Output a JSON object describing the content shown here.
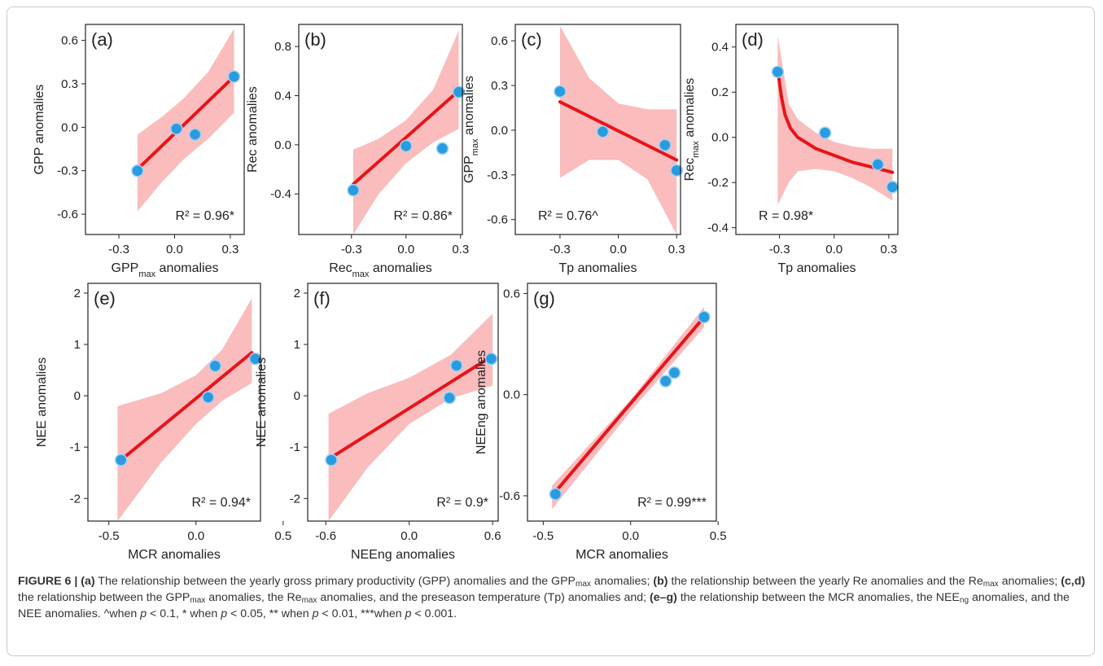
{
  "chart_data": [
    {
      "type": "scatter",
      "panel_label": "(a)",
      "xlabel": [
        "GPP",
        "max",
        " anomalies"
      ],
      "ylabel": [
        "GPP anomalies"
      ],
      "annotation": "R² = 0.96*",
      "annotation_position": "lower right",
      "x": [
        -0.2,
        0.01,
        0.11,
        0.32
      ],
      "values": [
        -0.3,
        -0.01,
        -0.05,
        0.35
      ],
      "color": "#2b9be0",
      "fit": {
        "x": [
          -0.2,
          0.32
        ],
        "values": [
          -0.29,
          0.35
        ],
        "color": "#e8141b"
      },
      "band": {
        "x": [
          -0.2,
          -0.07,
          0.05,
          0.18,
          0.32
        ],
        "lower": [
          -0.58,
          -0.38,
          -0.22,
          -0.08,
          0.1
        ],
        "upper": [
          -0.05,
          0.07,
          0.2,
          0.38,
          0.68
        ],
        "color": "#f9b0b0"
      },
      "xlim": [
        -0.48,
        0.375
      ],
      "ylim": [
        -0.74,
        0.71
      ],
      "xticks": [
        -0.3,
        {
          "value": 0,
          "label": "0.0"
        },
        0.3
      ],
      "yticks": [
        -0.6,
        -0.3,
        {
          "value": 0,
          "label": "0.0"
        },
        0.3,
        0.6
      ]
    },
    {
      "type": "scatter",
      "panel_label": "(b)",
      "xlabel": [
        "Rec",
        "max",
        " anomalies"
      ],
      "ylabel": [
        "Rec anomalies"
      ],
      "annotation": "R² = 0.86*",
      "annotation_position": "lower right",
      "x": [
        -0.29,
        0.0,
        0.2,
        0.29
      ],
      "values": [
        -0.37,
        -0.01,
        -0.03,
        0.43
      ],
      "color": "#2b9be0",
      "fit": {
        "x": [
          -0.29,
          0.29
        ],
        "values": [
          -0.32,
          0.44
        ],
        "color": "#e8141b"
      },
      "band": {
        "x": [
          -0.29,
          -0.15,
          0,
          0.15,
          0.29
        ],
        "lower": [
          -0.73,
          -0.4,
          -0.15,
          0.02,
          0.13
        ],
        "upper": [
          -0.04,
          0.05,
          0.2,
          0.45,
          0.93
        ],
        "color": "#f9b0b0"
      },
      "xlim": [
        -0.59,
        0.31
      ],
      "ylim": [
        -0.73,
        0.98
      ],
      "xticks": [
        -0.3,
        {
          "value": 0,
          "label": "0.0"
        },
        0.3
      ],
      "yticks": [
        -0.4,
        {
          "value": 0,
          "label": "0.0"
        },
        0.4,
        0.8
      ]
    },
    {
      "type": "scatter",
      "panel_label": "(c)",
      "xlabel": [
        "Tp anomalies"
      ],
      "ylabel": [
        "GPP",
        "max",
        " anomalies"
      ],
      "annotation": "R² = 0.76^",
      "annotation_position": "lower left",
      "x": [
        -0.3,
        -0.08,
        0.24,
        0.3
      ],
      "values": [
        0.26,
        -0.01,
        -0.1,
        -0.27
      ],
      "color": "#2b9be0",
      "fit": {
        "x": [
          -0.3,
          0.3
        ],
        "values": [
          0.19,
          -0.2
        ],
        "color": "#e8141b"
      },
      "band": {
        "x": [
          -0.3,
          -0.15,
          0,
          0.15,
          0.3
        ],
        "lower": [
          -0.32,
          -0.2,
          -0.2,
          -0.33,
          -0.7
        ],
        "upper": [
          0.7,
          0.35,
          0.18,
          0.14,
          0.14
        ],
        "color": "#f9b0b0"
      },
      "xlim": [
        -0.53,
        0.32
      ],
      "ylim": [
        -0.7,
        0.71
      ],
      "xticks": [
        -0.3,
        {
          "value": 0,
          "label": "0.0"
        },
        0.3
      ],
      "yticks": [
        -0.6,
        -0.3,
        {
          "value": 0,
          "label": "0.0"
        },
        0.3,
        0.6
      ]
    },
    {
      "type": "scatter",
      "panel_label": "(d)",
      "xlabel": [
        "Tp anomalies"
      ],
      "ylabel": [
        "Rec",
        "max",
        " anomalies"
      ],
      "annotation": "R = 0.98*",
      "annotation_position": "lower left",
      "x": [
        -0.31,
        -0.05,
        0.24,
        0.32
      ],
      "values": [
        0.29,
        0.02,
        -0.12,
        -0.22
      ],
      "color": "#2b9be0",
      "fit": {
        "x": [
          -0.31,
          -0.29,
          -0.27,
          -0.24,
          -0.2,
          -0.1,
          0,
          0.1,
          0.2,
          0.32
        ],
        "values": [
          0.3,
          0.18,
          0.1,
          0.04,
          0.0,
          -0.05,
          -0.08,
          -0.11,
          -0.13,
          -0.155
        ],
        "color": "#e8141b"
      },
      "band": {
        "x": [
          -0.31,
          -0.25,
          -0.2,
          -0.1,
          0,
          0.1,
          0.2,
          0.32
        ],
        "lower": [
          -0.3,
          -0.2,
          -0.15,
          -0.14,
          -0.15,
          -0.18,
          -0.22,
          -0.28
        ],
        "upper": [
          0.45,
          0.15,
          0.08,
          0.02,
          -0.02,
          -0.04,
          -0.05,
          -0.05
        ],
        "color": "#f9b0b0"
      },
      "xlim": [
        -0.54,
        0.35
      ],
      "ylim": [
        -0.43,
        0.5
      ],
      "xticks": [
        -0.3,
        {
          "value": 0,
          "label": "0.0"
        },
        0.3
      ],
      "yticks": [
        -0.4,
        -0.2,
        {
          "value": 0,
          "label": "0.0"
        },
        0.2,
        0.4
      ]
    },
    {
      "type": "scatter",
      "panel_label": "(e)",
      "xlabel": [
        "MCR anomalies"
      ],
      "ylabel": [
        "NEE anomalies"
      ],
      "annotation": "R² = 0.94*",
      "annotation_position": "lower right",
      "x": [
        -0.43,
        0.07,
        0.11,
        0.34
      ],
      "values": [
        -1.25,
        -0.03,
        0.58,
        0.72
      ],
      "color": "#2b9be0",
      "fit": {
        "x": [
          -0.43,
          0.32
        ],
        "values": [
          -1.25,
          0.84
        ],
        "color": "#e8141b"
      },
      "band": {
        "x": [
          -0.45,
          -0.2,
          0,
          0.15,
          0.32
        ],
        "lower": [
          -2.44,
          -1.3,
          -0.55,
          -0.1,
          0.25
        ],
        "upper": [
          -0.2,
          0.05,
          0.4,
          0.9,
          1.9
        ],
        "color": "#f9b0b0"
      },
      "xlim": [
        -0.62,
        0.37
      ],
      "ylim": [
        -2.44,
        2.19
      ],
      "xticks": [
        -0.5,
        {
          "value": 0,
          "label": "0.0"
        },
        0.5
      ],
      "yticks": [
        -2,
        -1,
        0,
        1,
        2
      ]
    },
    {
      "type": "scatter",
      "panel_label": "(f)",
      "xlabel": [
        "NEEng anomalies"
      ],
      "ylabel": [
        "NEE anomalies"
      ],
      "annotation": "R² = 0.9*",
      "annotation_position": "lower right",
      "x": [
        -0.56,
        0.29,
        0.34,
        0.59
      ],
      "values": [
        -1.25,
        -0.04,
        0.59,
        0.72
      ],
      "color": "#2b9be0",
      "fit": {
        "x": [
          -0.56,
          0.6
        ],
        "values": [
          -1.2,
          0.78
        ],
        "color": "#e8141b"
      },
      "band": {
        "x": [
          -0.58,
          -0.3,
          0,
          0.3,
          0.6
        ],
        "lower": [
          -2.44,
          -1.4,
          -0.55,
          -0.05,
          0.2
        ],
        "upper": [
          -0.35,
          0.05,
          0.35,
          0.8,
          1.6
        ],
        "color": "#f9b0b0"
      },
      "xlim": [
        -0.73,
        0.64
      ],
      "ylim": [
        -2.44,
        2.19
      ],
      "xticks": [
        -0.6,
        {
          "value": 0,
          "label": "0.0"
        },
        0.6
      ],
      "yticks": [
        -2,
        -1,
        0,
        1,
        2
      ]
    },
    {
      "type": "scatter",
      "panel_label": "(g)",
      "xlabel": [
        "MCR anomalies"
      ],
      "ylabel": [
        "NEEng anomalies"
      ],
      "annotation": "R² = 0.99***",
      "annotation_position": "lower right",
      "x": [
        -0.43,
        0.2,
        0.25,
        0.42
      ],
      "values": [
        -0.59,
        0.08,
        0.13,
        0.46
      ],
      "color": "#2b9be0",
      "fit": {
        "x": [
          -0.45,
          0.42
        ],
        "values": [
          -0.6,
          0.46
        ],
        "color": "#e8141b"
      },
      "band": {
        "x": [
          -0.45,
          0,
          0.42
        ],
        "lower": [
          -0.68,
          -0.1,
          0.4
        ],
        "upper": [
          -0.54,
          -0.03,
          0.52
        ],
        "color": "#f9b0b0"
      },
      "xlim": [
        -0.59,
        0.49
      ],
      "ylim": [
        -0.75,
        0.66
      ],
      "xticks": [
        -0.5,
        {
          "value": 0,
          "label": "0.0"
        },
        0.5
      ],
      "yticks": [
        -0.6,
        {
          "value": 0,
          "label": "0.0"
        },
        0.6
      ]
    }
  ],
  "caption": [
    {
      "text": "FIGURE 6 | (a)",
      "style": "bold"
    },
    {
      "text": " The relationship between the yearly gross primary productivity (GPP) anomalies and the GPP",
      "style": "normal"
    },
    {
      "text": "max",
      "style": "sub"
    },
    {
      "text": " anomalies; ",
      "style": "normal"
    },
    {
      "text": "(b)",
      "style": "bold"
    },
    {
      "text": " the relationship between the yearly Re anomalies and the Re",
      "style": "normal"
    },
    {
      "text": "max",
      "style": "sub"
    },
    {
      "text": " anomalies; ",
      "style": "normal"
    },
    {
      "text": "(c,d)",
      "style": "bold"
    },
    {
      "text": " the relationship between the GPP",
      "style": "normal"
    },
    {
      "text": "max",
      "style": "sub"
    },
    {
      "text": " anomalies, the Re",
      "style": "normal"
    },
    {
      "text": "max",
      "style": "sub"
    },
    {
      "text": " anomalies, and the preseason temperature (Tp) anomalies and; ",
      "style": "normal"
    },
    {
      "text": "(e–g)",
      "style": "bold"
    },
    {
      "text": " the relationship between the MCR anomalies, the NEE",
      "style": "normal"
    },
    {
      "text": "ng",
      "style": "sub"
    },
    {
      "text": " anomalies, and the NEE anomalies. ^when ",
      "style": "normal"
    },
    {
      "text": "p",
      "style": "italic"
    },
    {
      "text": " < 0.1, * when ",
      "style": "normal"
    },
    {
      "text": "p",
      "style": "italic"
    },
    {
      "text": " < 0.05, ** when ",
      "style": "normal"
    },
    {
      "text": "p",
      "style": "italic"
    },
    {
      "text": " < 0.01, ***when ",
      "style": "normal"
    },
    {
      "text": "p",
      "style": "italic"
    },
    {
      "text": " < 0.001.",
      "style": "normal"
    }
  ]
}
